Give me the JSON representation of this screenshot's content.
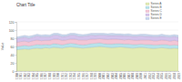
{
  "chart_data": {
    "type": "area",
    "stacked": true,
    "grid": true,
    "legend": "top-right",
    "title": "Chart Title",
    "y_label": "Value",
    "categories": [
      "1980",
      "1981",
      "1982",
      "1983",
      "1984",
      "1985",
      "1986",
      "1987",
      "1988",
      "1989",
      "1990",
      "1991",
      "1992",
      "1993",
      "1994",
      "1995",
      "1996",
      "1997",
      "1998",
      "1999",
      "2000",
      "2001",
      "2002",
      "2003",
      "2004",
      "2005",
      "2006",
      "2007",
      "2008",
      "2009",
      "2010",
      "2011",
      "2012",
      "2013",
      "2014",
      "2015",
      "2016",
      "2017",
      "2018",
      "2019"
    ],
    "ylim": [
      0,
      120
    ],
    "yticks": [
      0,
      20,
      40,
      60,
      80,
      100,
      120
    ],
    "series": [
      {
        "name": "Series A",
        "color": "#e2ebb4",
        "values": [
          52,
          53,
          54,
          53,
          55,
          56,
          55,
          57,
          56,
          58,
          57,
          56,
          58,
          59,
          58,
          57,
          56,
          57,
          58,
          59,
          60,
          59,
          58,
          57,
          58,
          59,
          58,
          57,
          56,
          57,
          58,
          57,
          56,
          55,
          56,
          57,
          56,
          55,
          56,
          55
        ]
      },
      {
        "name": "Series B",
        "color": "#b7e3ec",
        "values": [
          8,
          8,
          9,
          8,
          8,
          9,
          9,
          8,
          8,
          9,
          9,
          8,
          8,
          9,
          9,
          8,
          8,
          8,
          9,
          9,
          9,
          8,
          8,
          9,
          9,
          8,
          8,
          9,
          9,
          8,
          8,
          8,
          9,
          9,
          8,
          8,
          9,
          8,
          8,
          8
        ]
      },
      {
        "name": "Series C",
        "color": "#f4c6d6",
        "values": [
          10,
          11,
          10,
          10,
          11,
          11,
          10,
          10,
          11,
          11,
          12,
          11,
          10,
          10,
          11,
          11,
          12,
          11,
          11,
          10,
          10,
          11,
          11,
          12,
          11,
          10,
          10,
          11,
          11,
          10,
          10,
          11,
          11,
          10,
          10,
          11,
          10,
          10,
          11,
          10
        ]
      },
      {
        "name": "Series D",
        "color": "#d5c4ec",
        "values": [
          9,
          9,
          10,
          9,
          9,
          10,
          10,
          9,
          9,
          10,
          10,
          9,
          9,
          10,
          10,
          9,
          9,
          10,
          10,
          9,
          9,
          10,
          10,
          9,
          9,
          10,
          10,
          9,
          9,
          10,
          10,
          9,
          9,
          10,
          10,
          9,
          9,
          10,
          10,
          9
        ]
      },
      {
        "name": "Series E",
        "color": "#c9d8f0",
        "values": [
          4,
          4,
          4,
          5,
          4,
          4,
          4,
          5,
          4,
          4,
          4,
          5,
          4,
          4,
          4,
          5,
          4,
          4,
          4,
          5,
          4,
          4,
          4,
          5,
          4,
          4,
          4,
          5,
          4,
          4,
          4,
          5,
          4,
          4,
          4,
          5,
          4,
          4,
          4,
          5
        ]
      }
    ]
  }
}
